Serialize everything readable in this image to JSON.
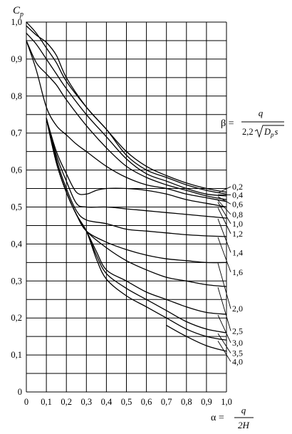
{
  "chart_data": {
    "type": "line",
    "ylabel": {
      "base": "C",
      "sub": "p"
    },
    "xlabel": {
      "symbol": "α =",
      "numerator": "q",
      "denominator": "2H"
    },
    "formula": {
      "symbol": "β =",
      "numerator": "q",
      "den_coef": "2,2",
      "den_root_main": "D",
      "den_root_sub": "p",
      "den_root_tail": "s"
    },
    "xlim": [
      0,
      1.0
    ],
    "ylim": [
      0,
      1.0
    ],
    "x_ticks": [
      {
        "value": 0,
        "label": "0"
      },
      {
        "value": 0.1,
        "label": "0,1"
      },
      {
        "value": 0.2,
        "label": "0,2"
      },
      {
        "value": 0.3,
        "label": "0,3"
      },
      {
        "value": 0.4,
        "label": "0,4"
      },
      {
        "value": 0.5,
        "label": "0,5"
      },
      {
        "value": 0.6,
        "label": "0,6"
      },
      {
        "value": 0.7,
        "label": "0,7"
      },
      {
        "value": 0.8,
        "label": "0,8"
      },
      {
        "value": 0.9,
        "label": "0,9"
      },
      {
        "value": 1.0,
        "label": "1,0"
      }
    ],
    "y_ticks": [
      {
        "value": 0,
        "label": "0"
      },
      {
        "value": 0.1,
        "label": "0,1"
      },
      {
        "value": 0.2,
        "label": "0,2"
      },
      {
        "value": 0.3,
        "label": "0,3"
      },
      {
        "value": 0.4,
        "label": "0,4"
      },
      {
        "value": 0.5,
        "label": "0,5"
      },
      {
        "value": 0.6,
        "label": "0,6"
      },
      {
        "value": 0.7,
        "label": "0,7"
      },
      {
        "value": 0.8,
        "label": "0,8"
      },
      {
        "value": 0.9,
        "label": "0,9"
      },
      {
        "value": 1.0,
        "label": "1,0"
      }
    ],
    "grid_step": 0.05,
    "grid": true,
    "series": [
      {
        "label": "0,2",
        "points": [
          [
            0,
            1.0
          ],
          [
            0.05,
            0.97
          ],
          [
            0.1,
            0.93
          ],
          [
            0.15,
            0.89
          ],
          [
            0.2,
            0.84
          ],
          [
            0.3,
            0.77
          ],
          [
            0.4,
            0.71
          ],
          [
            0.5,
            0.65
          ],
          [
            0.6,
            0.61
          ],
          [
            0.7,
            0.585
          ],
          [
            0.8,
            0.565
          ],
          [
            0.9,
            0.55
          ],
          [
            1.0,
            0.54
          ]
        ]
      },
      {
        "label": "0,4",
        "points": [
          [
            0,
            0.99
          ],
          [
            0.05,
            0.965
          ],
          [
            0.1,
            0.945
          ],
          [
            0.15,
            0.91
          ],
          [
            0.2,
            0.85
          ],
          [
            0.3,
            0.77
          ],
          [
            0.4,
            0.71
          ],
          [
            0.5,
            0.64
          ],
          [
            0.6,
            0.6
          ],
          [
            0.7,
            0.58
          ],
          [
            0.8,
            0.56
          ],
          [
            0.9,
            0.545
          ],
          [
            1.0,
            0.535
          ]
        ]
      },
      {
        "label": "0,6",
        "points": [
          [
            0,
            0.97
          ],
          [
            0.05,
            0.94
          ],
          [
            0.1,
            0.9
          ],
          [
            0.15,
            0.86
          ],
          [
            0.2,
            0.82
          ],
          [
            0.3,
            0.75
          ],
          [
            0.4,
            0.69
          ],
          [
            0.5,
            0.63
          ],
          [
            0.6,
            0.59
          ],
          [
            0.7,
            0.57
          ],
          [
            0.8,
            0.55
          ],
          [
            0.9,
            0.535
          ],
          [
            1.0,
            0.53
          ]
        ]
      },
      {
        "label": "0,8",
        "points": [
          [
            0,
            0.95
          ],
          [
            0.05,
            0.89
          ],
          [
            0.1,
            0.86
          ],
          [
            0.15,
            0.83
          ],
          [
            0.2,
            0.79
          ],
          [
            0.3,
            0.72
          ],
          [
            0.4,
            0.66
          ],
          [
            0.5,
            0.61
          ],
          [
            0.6,
            0.58
          ],
          [
            0.7,
            0.56
          ],
          [
            0.8,
            0.545
          ],
          [
            0.9,
            0.53
          ],
          [
            1.0,
            0.52
          ]
        ]
      },
      {
        "label": "1,0",
        "points": [
          [
            0,
            0.95
          ],
          [
            0.05,
            0.87
          ],
          [
            0.1,
            0.77
          ],
          [
            0.15,
            0.72
          ],
          [
            0.2,
            0.695
          ],
          [
            0.25,
            0.67
          ],
          [
            0.3,
            0.65
          ],
          [
            0.4,
            0.61
          ],
          [
            0.5,
            0.58
          ],
          [
            0.6,
            0.56
          ],
          [
            0.7,
            0.55
          ],
          [
            0.8,
            0.535
          ],
          [
            0.9,
            0.525
          ],
          [
            1.0,
            0.515
          ]
        ]
      },
      {
        "label": "1,2",
        "points": [
          [
            0.1,
            0.74
          ],
          [
            0.15,
            0.65
          ],
          [
            0.2,
            0.59
          ],
          [
            0.25,
            0.54
          ],
          [
            0.3,
            0.535
          ],
          [
            0.35,
            0.545
          ],
          [
            0.4,
            0.55
          ],
          [
            0.5,
            0.55
          ],
          [
            0.6,
            0.545
          ],
          [
            0.7,
            0.535
          ],
          [
            0.8,
            0.52
          ],
          [
            0.9,
            0.51
          ],
          [
            1.0,
            0.5
          ]
        ]
      },
      {
        "label": "1,4",
        "points": [
          [
            0.1,
            0.74
          ],
          [
            0.15,
            0.64
          ],
          [
            0.2,
            0.57
          ],
          [
            0.25,
            0.51
          ],
          [
            0.3,
            0.5
          ],
          [
            0.4,
            0.5
          ],
          [
            0.5,
            0.495
          ],
          [
            0.6,
            0.49
          ],
          [
            0.7,
            0.485
          ],
          [
            0.8,
            0.48
          ],
          [
            0.9,
            0.475
          ],
          [
            1.0,
            0.47
          ]
        ]
      },
      {
        "label": "1,6",
        "points": [
          [
            0.1,
            0.74
          ],
          [
            0.15,
            0.63
          ],
          [
            0.2,
            0.55
          ],
          [
            0.25,
            0.49
          ],
          [
            0.3,
            0.465
          ],
          [
            0.4,
            0.455
          ],
          [
            0.5,
            0.44
          ],
          [
            0.6,
            0.435
          ],
          [
            0.7,
            0.43
          ],
          [
            0.8,
            0.425
          ],
          [
            0.9,
            0.422
          ],
          [
            1.0,
            0.42
          ]
        ]
      },
      {
        "label": "2,0",
        "points": [
          [
            0.1,
            0.74
          ],
          [
            0.15,
            0.62
          ],
          [
            0.2,
            0.54
          ],
          [
            0.25,
            0.48
          ],
          [
            0.3,
            0.435
          ],
          [
            0.4,
            0.405
          ],
          [
            0.5,
            0.385
          ],
          [
            0.6,
            0.37
          ],
          [
            0.7,
            0.36
          ],
          [
            0.8,
            0.355
          ],
          [
            0.9,
            0.35
          ],
          [
            1.0,
            0.35
          ]
        ]
      },
      {
        "label": "2,5",
        "points": [
          [
            0.1,
            0.74
          ],
          [
            0.15,
            0.62
          ],
          [
            0.2,
            0.54
          ],
          [
            0.25,
            0.48
          ],
          [
            0.3,
            0.435
          ],
          [
            0.4,
            0.39
          ],
          [
            0.5,
            0.355
          ],
          [
            0.6,
            0.33
          ],
          [
            0.7,
            0.31
          ],
          [
            0.8,
            0.3
          ],
          [
            0.9,
            0.29
          ],
          [
            1.0,
            0.285
          ]
        ]
      },
      {
        "label": "3,0",
        "points": [
          [
            0.1,
            0.74
          ],
          [
            0.15,
            0.62
          ],
          [
            0.2,
            0.54
          ],
          [
            0.25,
            0.48
          ],
          [
            0.3,
            0.435
          ],
          [
            0.35,
            0.38
          ],
          [
            0.4,
            0.33
          ],
          [
            0.5,
            0.3
          ],
          [
            0.6,
            0.27
          ],
          [
            0.7,
            0.25
          ],
          [
            0.8,
            0.23
          ],
          [
            0.9,
            0.215
          ],
          [
            1.0,
            0.21
          ]
        ]
      },
      {
        "label": "3,5",
        "points": [
          [
            0.1,
            0.74
          ],
          [
            0.15,
            0.62
          ],
          [
            0.2,
            0.54
          ],
          [
            0.25,
            0.48
          ],
          [
            0.3,
            0.435
          ],
          [
            0.35,
            0.37
          ],
          [
            0.4,
            0.32
          ],
          [
            0.5,
            0.28
          ],
          [
            0.6,
            0.25
          ],
          [
            0.7,
            0.22
          ],
          [
            0.8,
            0.19
          ],
          [
            0.9,
            0.17
          ],
          [
            1.0,
            0.16
          ]
        ]
      },
      {
        "label": "4,0",
        "points": [
          [
            0.1,
            0.74
          ],
          [
            0.15,
            0.62
          ],
          [
            0.2,
            0.54
          ],
          [
            0.25,
            0.48
          ],
          [
            0.3,
            0.435
          ],
          [
            0.35,
            0.36
          ],
          [
            0.4,
            0.305
          ],
          [
            0.5,
            0.26
          ],
          [
            0.6,
            0.23
          ],
          [
            0.7,
            0.2
          ],
          [
            0.8,
            0.17
          ],
          [
            0.9,
            0.15
          ],
          [
            1.0,
            0.14
          ]
        ]
      }
    ],
    "extra_series": [
      {
        "points": [
          [
            0.7,
            0.18
          ],
          [
            0.8,
            0.15
          ],
          [
            0.9,
            0.125
          ],
          [
            1.0,
            0.11
          ]
        ]
      }
    ],
    "label_slots": [
      0.555,
      0.533,
      0.508,
      0.48,
      0.455,
      0.428,
      0.377,
      0.324,
      0.225,
      0.165,
      0.133,
      0.105,
      0.082
    ]
  }
}
